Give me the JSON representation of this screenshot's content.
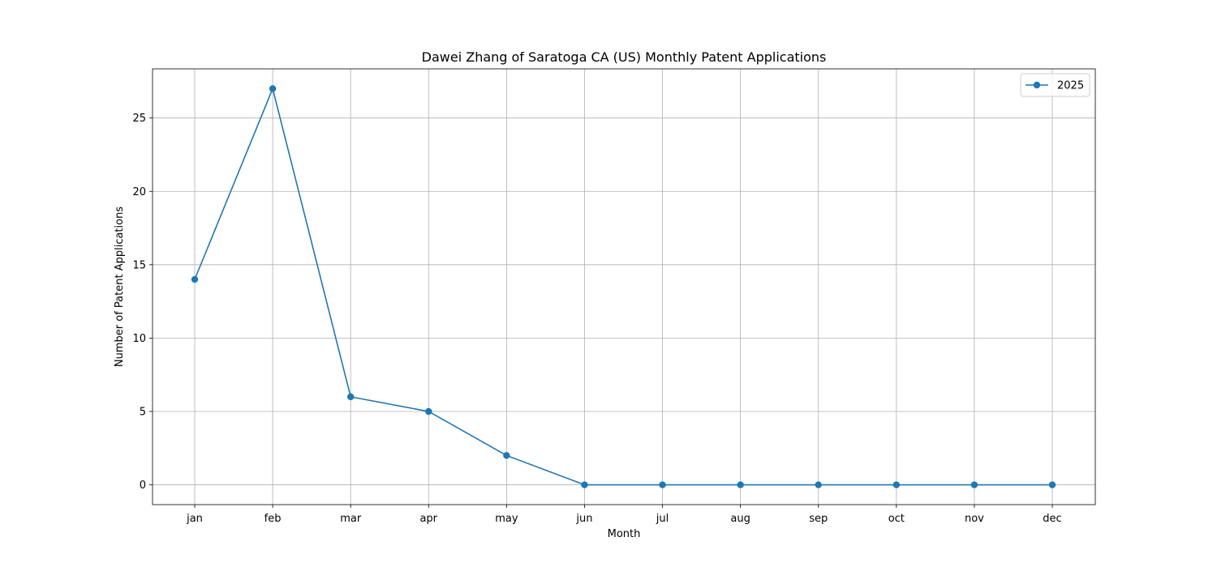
{
  "chart_data": {
    "type": "line",
    "title": "Dawei Zhang of Saratoga CA (US) Monthly Patent Applications",
    "xlabel": "Month",
    "ylabel": "Number of Patent Applications",
    "categories": [
      "jan",
      "feb",
      "mar",
      "apr",
      "may",
      "jun",
      "jul",
      "aug",
      "sep",
      "oct",
      "nov",
      "dec"
    ],
    "series": [
      {
        "name": "2025",
        "values": [
          14,
          27,
          6,
          5,
          2,
          0,
          0,
          0,
          0,
          0,
          0,
          0
        ],
        "color": "#1f77b4"
      }
    ],
    "ylim": [
      -1.35,
      28.35
    ],
    "yticks": [
      0,
      5,
      10,
      15,
      20,
      25
    ],
    "grid": true,
    "legend_position": "top-right",
    "marker": "circle"
  }
}
